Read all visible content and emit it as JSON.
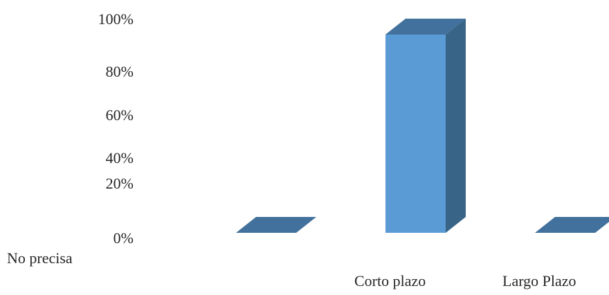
{
  "chart_data": {
    "type": "bar",
    "style": "3d-column",
    "title": "",
    "xlabel": "",
    "ylabel": "",
    "categories": [
      "No precisa",
      "Corto plazo",
      "Largo Plazo"
    ],
    "values": [
      0,
      92,
      0
    ],
    "ylim": [
      0,
      100
    ],
    "yticks": [
      0,
      20,
      40,
      60,
      80,
      100
    ],
    "ytick_labels": [
      "0%",
      "20%",
      "40%",
      "60%",
      "80%",
      "100%"
    ],
    "grid": false,
    "legend": "none",
    "colors": {
      "front": "#5b9bd5",
      "top": "#41719c",
      "side": "#386487"
    }
  }
}
